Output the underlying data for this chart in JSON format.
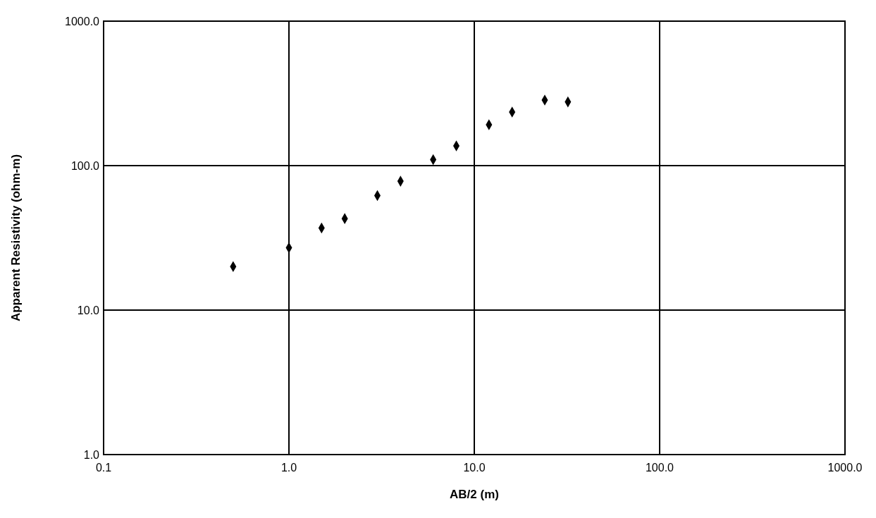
{
  "chart_data": {
    "type": "scatter",
    "xlabel": "AB/2 (m)",
    "ylabel": "Apparent Resistivity (ohm-m)",
    "log": "xy",
    "grid": true,
    "marker": "diamond",
    "x": [
      0.5,
      1.0,
      1.5,
      2.0,
      3.0,
      4.0,
      6.0,
      8.0,
      12,
      16,
      24,
      32
    ],
    "series": [
      {
        "color": "#000000",
        "values": [
          20,
          27,
          37,
          43,
          62,
          78,
          110,
          137,
          192,
          235,
          284,
          276
        ]
      }
    ],
    "xlim": [
      0.1,
      1000
    ],
    "ylim": [
      1,
      1000
    ],
    "xticks": [
      {
        "value": 0.1,
        "label": "0.1"
      },
      {
        "value": 1,
        "label": "1.0"
      },
      {
        "value": 10,
        "label": "10.0"
      },
      {
        "value": 100,
        "label": "100.0"
      },
      {
        "value": 1000,
        "label": "1000.0"
      }
    ],
    "yticks": [
      {
        "value": 1,
        "label": "1.0"
      },
      {
        "value": 10,
        "label": "10.0"
      },
      {
        "value": 100,
        "label": "100.0"
      },
      {
        "value": 1000,
        "label": "1000.0"
      }
    ]
  }
}
